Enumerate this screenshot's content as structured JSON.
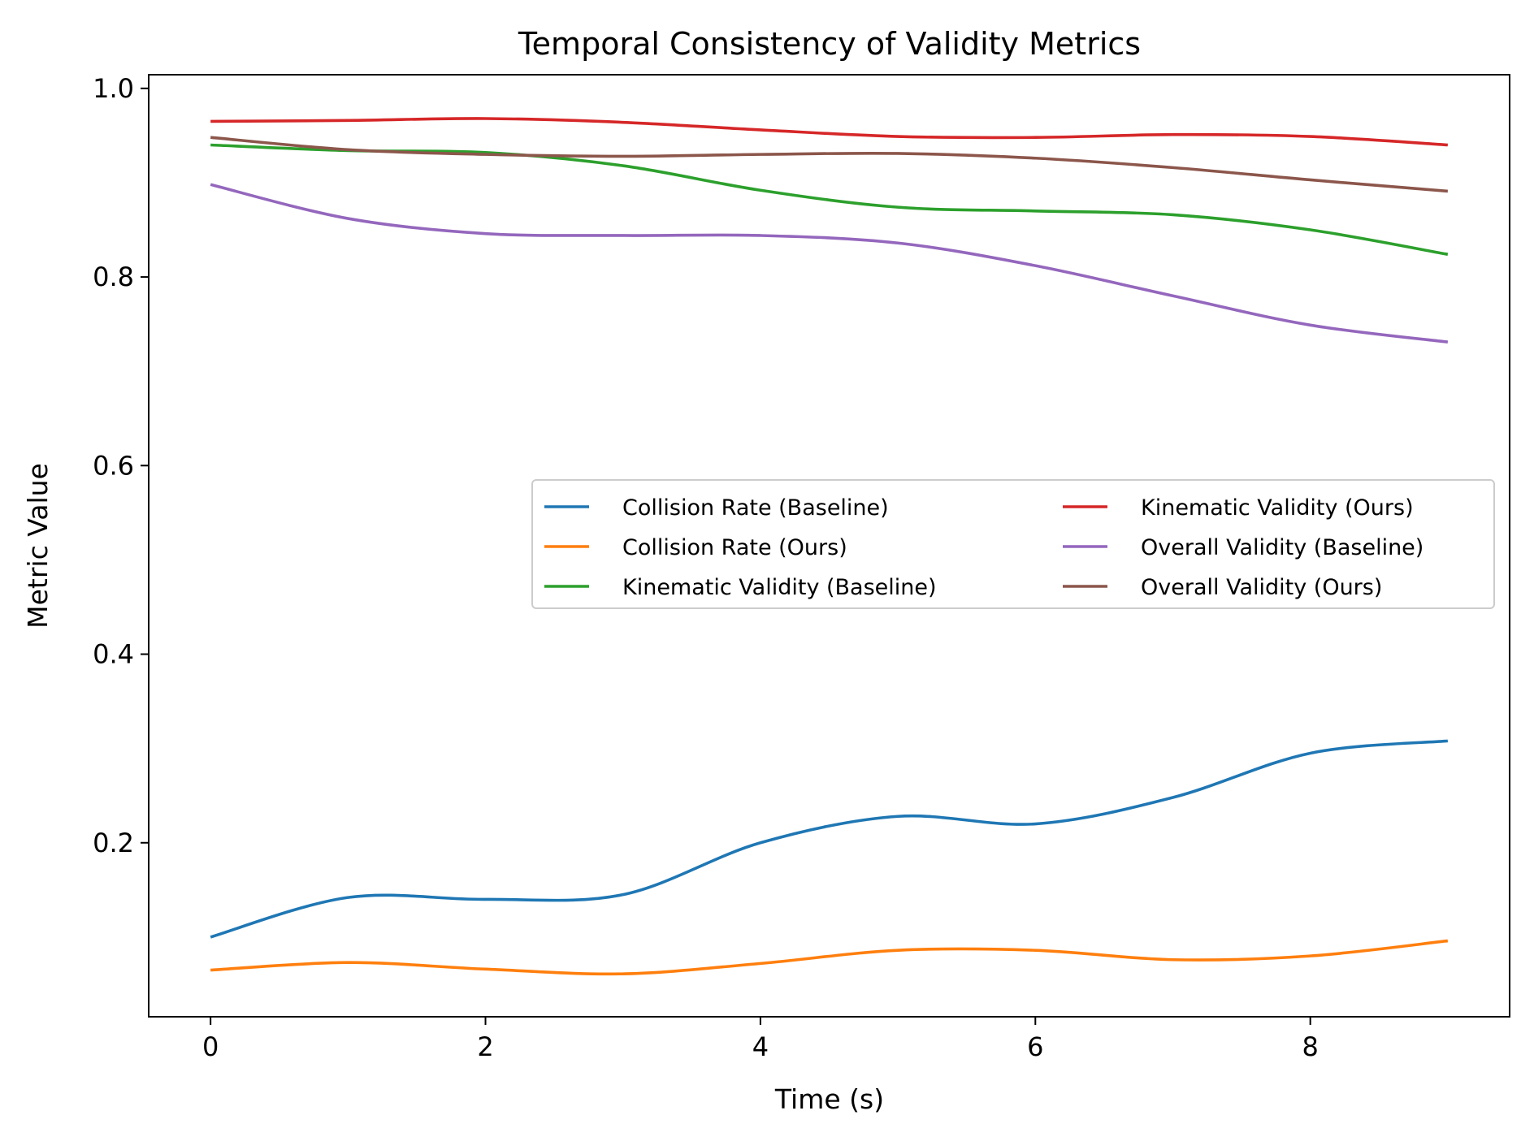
{
  "chart_data": {
    "type": "line",
    "title": "Temporal Consistency of Validity Metrics",
    "xlabel": "Time (s)",
    "ylabel": "Metric Value",
    "xlim": [
      -0.45,
      9.45
    ],
    "ylim": [
      0.0155,
      1.0145
    ],
    "xticks": [
      0,
      2,
      4,
      6,
      8
    ],
    "xtick_labels": [
      "0",
      "2",
      "4",
      "6",
      "8"
    ],
    "yticks": [
      0.2,
      0.4,
      0.6,
      0.8,
      1.0
    ],
    "ytick_labels": [
      "0.2",
      "0.4",
      "0.6",
      "0.8",
      "1.0"
    ],
    "grid": false,
    "legend_position": "center-right",
    "legend_columns": 2,
    "x": [
      0,
      1,
      2,
      3,
      4,
      5,
      6,
      7,
      8,
      9
    ],
    "series": [
      {
        "name": "Collision Rate (Baseline)",
        "color": "#1f77b4",
        "values": [
          0.1,
          0.142,
          0.14,
          0.145,
          0.2,
          0.228,
          0.22,
          0.248,
          0.295,
          0.308
        ]
      },
      {
        "name": "Collision Rate (Ours)",
        "color": "#ff7f0e",
        "values": [
          0.065,
          0.073,
          0.066,
          0.061,
          0.072,
          0.086,
          0.086,
          0.076,
          0.08,
          0.096
        ]
      },
      {
        "name": "Kinematic Validity (Baseline)",
        "color": "#2ca02c",
        "values": [
          0.94,
          0.934,
          0.932,
          0.918,
          0.892,
          0.874,
          0.87,
          0.866,
          0.85,
          0.824
        ]
      },
      {
        "name": "Kinematic Validity (Ours)",
        "color": "#d62728",
        "values": [
          0.965,
          0.966,
          0.968,
          0.964,
          0.956,
          0.949,
          0.948,
          0.951,
          0.949,
          0.94
        ]
      },
      {
        "name": "Overall Validity (Baseline)",
        "color": "#9467bd",
        "values": [
          0.898,
          0.862,
          0.846,
          0.844,
          0.844,
          0.836,
          0.812,
          0.78,
          0.749,
          0.731
        ]
      },
      {
        "name": "Overall Validity (Ours)",
        "color": "#8c564b",
        "values": [
          0.948,
          0.935,
          0.93,
          0.928,
          0.93,
          0.931,
          0.926,
          0.916,
          0.903,
          0.891
        ]
      }
    ]
  }
}
